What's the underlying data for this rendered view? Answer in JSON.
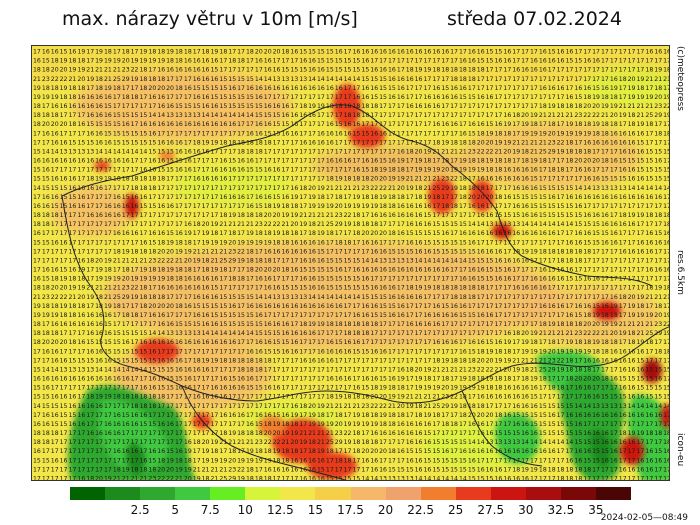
{
  "header": {
    "title": "max. nárazy větru v 10m [m/s]",
    "date": "středa 07.02.2024"
  },
  "side_labels": {
    "credit": "(c)meteopress",
    "resolution": "res.6.5km",
    "model": "icon-eu"
  },
  "legend": {
    "colors": [
      "#006400",
      "#1d8a1d",
      "#2fa82f",
      "#40c840",
      "#66ee22",
      "#d6f53a",
      "#f2e64a",
      "#f5cf48",
      "#f5b86a",
      "#f0a26c",
      "#f07e2e",
      "#e83a1c",
      "#cc1410",
      "#a80e0e",
      "#7a0808",
      "#4a0505"
    ],
    "labels": [
      "2.5",
      "5",
      "7.5",
      "10",
      "12.5",
      "15",
      "17.5",
      "20",
      "22.5",
      "25",
      "27.5",
      "30",
      "32.5",
      "35"
    ]
  },
  "timestamp": "2024-02-05—08:49",
  "map": {
    "field": "wind-gusts",
    "values_sample": [
      [
        17,
        16,
        16,
        15,
        16,
        19,
        17,
        19,
        18,
        17,
        18,
        17,
        19,
        18,
        18,
        19,
        18,
        18,
        17,
        18,
        19,
        18,
        17,
        17,
        18,
        20,
        20,
        20,
        18,
        16,
        15,
        15,
        15,
        15,
        16,
        17,
        16,
        16,
        16,
        16,
        16,
        16,
        16,
        16,
        16,
        16,
        16,
        17,
        17,
        16,
        16,
        15,
        15,
        16,
        17,
        17,
        17,
        16,
        15,
        16,
        16,
        17,
        17,
        17,
        17,
        17,
        17,
        17,
        17,
        16,
        16,
        16
      ],
      [
        17,
        17,
        17,
        16,
        15,
        18,
        19,
        18,
        18,
        17,
        19,
        19,
        19,
        20,
        19,
        19,
        19,
        19,
        18,
        18,
        16,
        16,
        16,
        16,
        17,
        18,
        18,
        17,
        16,
        16,
        17,
        17,
        17,
        16,
        16,
        15,
        15,
        15,
        15,
        15,
        16,
        17,
        17,
        17,
        17,
        17,
        17,
        17,
        17,
        17,
        17,
        16,
        16,
        15,
        15,
        16,
        16,
        17,
        17,
        16,
        16,
        16,
        16,
        15,
        15,
        16,
        16,
        17,
        17,
        17,
        17,
        17
      ],
      [
        17,
        17,
        17,
        18,
        19,
        18,
        18,
        18,
        20,
        20,
        19,
        19,
        21,
        21,
        21,
        21,
        23,
        22,
        18,
        17,
        16,
        16,
        16,
        16,
        16,
        16,
        15,
        17,
        17,
        17,
        17,
        17,
        16,
        16,
        15,
        15,
        15,
        16,
        16,
        15,
        15,
        15,
        15,
        15,
        16,
        16,
        16,
        17,
        18,
        19,
        19,
        18,
        18,
        18,
        18,
        18,
        18,
        17,
        17,
        17,
        16,
        16,
        16,
        16,
        17,
        17,
        17,
        17,
        17,
        17,
        17,
        17
      ],
      [
        17,
        17,
        16,
        18,
        20,
        19,
        21,
        21,
        21,
        21,
        23,
        22,
        22,
        21,
        20,
        19,
        18,
        21,
        25,
        29,
        19,
        18,
        18,
        18,
        17,
        17,
        17,
        16,
        16,
        16,
        15,
        15,
        15,
        15,
        14,
        14,
        13,
        13,
        13,
        13,
        14,
        14,
        14,
        14,
        14,
        14,
        15,
        15,
        15,
        16,
        16,
        16,
        16,
        17,
        17,
        17,
        18,
        18,
        18,
        17,
        17,
        17,
        17,
        17,
        17,
        17,
        17,
        17,
        17,
        17,
        17,
        17
      ]
    ]
  }
}
